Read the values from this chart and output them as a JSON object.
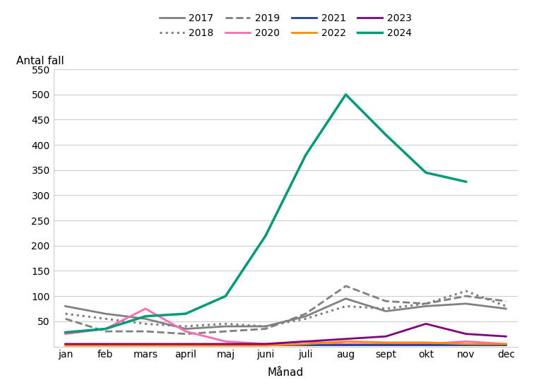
{
  "months": [
    "jan",
    "feb",
    "mars",
    "april",
    "maj",
    "juni",
    "juli",
    "aug",
    "sept",
    "okt",
    "nov",
    "dec"
  ],
  "series": {
    "2017": {
      "values": [
        80,
        65,
        55,
        35,
        40,
        40,
        60,
        95,
        70,
        80,
        85,
        75
      ],
      "color": "#808080",
      "linestyle": "solid",
      "linewidth": 2.0,
      "zorder": 3
    },
    "2018": {
      "values": [
        65,
        55,
        45,
        40,
        45,
        40,
        55,
        80,
        75,
        85,
        110,
        80
      ],
      "color": "#808080",
      "linestyle": "dotted",
      "linewidth": 2.2,
      "zorder": 3
    },
    "2019": {
      "values": [
        55,
        30,
        30,
        25,
        30,
        35,
        65,
        120,
        90,
        85,
        100,
        90
      ],
      "color": "#808080",
      "linestyle": "dashed",
      "linewidth": 2.0,
      "zorder": 3
    },
    "2020": {
      "values": [
        25,
        35,
        75,
        30,
        10,
        5,
        10,
        5,
        5,
        5,
        10,
        5
      ],
      "color": "#FF69B4",
      "linestyle": "solid",
      "linewidth": 2.0,
      "zorder": 4
    },
    "2021": {
      "values": [
        3,
        3,
        3,
        3,
        3,
        3,
        3,
        3,
        3,
        3,
        3,
        3
      ],
      "color": "#1F3F99",
      "linestyle": "solid",
      "linewidth": 2.0,
      "zorder": 4
    },
    "2022": {
      "values": [
        2,
        2,
        2,
        2,
        2,
        2,
        5,
        10,
        8,
        8,
        5,
        5
      ],
      "color": "#FF8C00",
      "linestyle": "solid",
      "linewidth": 2.0,
      "zorder": 4
    },
    "2023": {
      "values": [
        5,
        5,
        5,
        5,
        5,
        5,
        10,
        15,
        20,
        45,
        25,
        20
      ],
      "color": "#800080",
      "linestyle": "solid",
      "linewidth": 2.0,
      "zorder": 4
    },
    "2024": {
      "values": [
        28,
        35,
        60,
        65,
        100,
        220,
        380,
        500,
        420,
        345,
        327,
        null
      ],
      "color": "#009B77",
      "linestyle": "solid",
      "linewidth": 2.5,
      "zorder": 5
    }
  },
  "ylabel": "Antal fall",
  "xlabel": "Månad",
  "ylim": [
    0,
    550
  ],
  "yticks": [
    50,
    100,
    150,
    200,
    250,
    300,
    350,
    400,
    450,
    500,
    550
  ],
  "background_color": "#ffffff",
  "grid_color": "#cccccc",
  "legend_order": [
    "2017",
    "2018",
    "2019",
    "2020",
    "2021",
    "2022",
    "2023",
    "2024"
  ]
}
